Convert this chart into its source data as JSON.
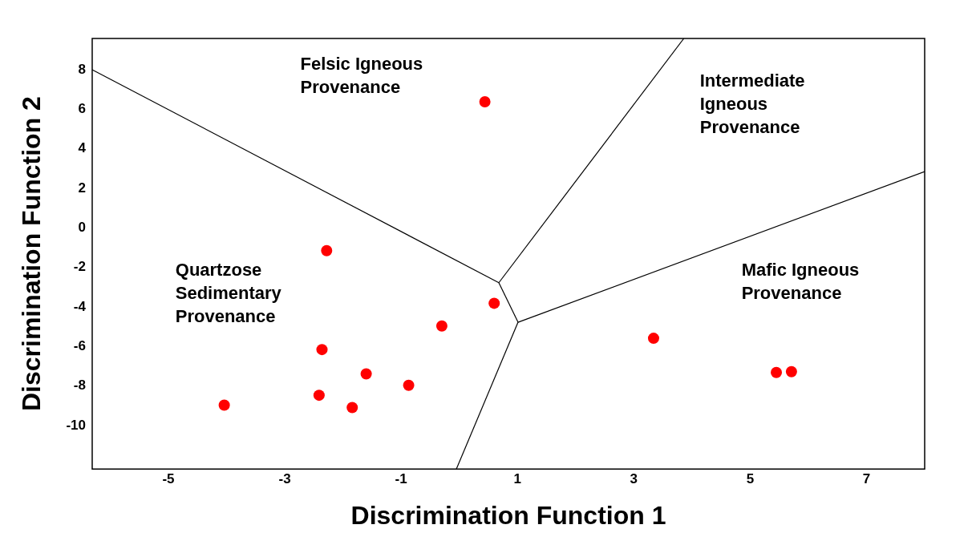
{
  "chart_data": {
    "type": "scatter",
    "xlabel": "Discrimination Function 1",
    "ylabel": "Discrimination Function 2",
    "xlim": [
      -6.31,
      8.0
    ],
    "ylim": [
      -12.19,
      9.58
    ],
    "xticks": [
      -5,
      -3,
      -1,
      1,
      3,
      5,
      7
    ],
    "yticks": [
      -10,
      -8,
      -6,
      -4,
      -2,
      0,
      2,
      4,
      6,
      8
    ],
    "grid": false,
    "legend": false,
    "marker": "circle",
    "series": [
      {
        "type": "scatter",
        "color": "#ff0000",
        "x": [
          0.44,
          -2.28,
          0.6,
          -0.3,
          -2.36,
          -1.6,
          -0.87,
          -2.41,
          -1.84,
          -4.04,
          3.34,
          5.45,
          5.71
        ],
        "values": [
          6.38,
          -1.15,
          -3.81,
          -4.96,
          -6.15,
          -7.38,
          -7.96,
          -8.46,
          -9.08,
          -8.96,
          -5.58,
          -7.31,
          -7.27
        ]
      },
      {
        "type": "line",
        "color": "#000000",
        "marker": "none",
        "x": [
          -6.31,
          0.68
        ],
        "values": [
          8.0,
          -2.77
        ]
      },
      {
        "type": "line",
        "color": "#000000",
        "marker": "none",
        "x": [
          3.86,
          0.68
        ],
        "values": [
          9.58,
          -2.77
        ]
      },
      {
        "type": "line",
        "color": "#000000",
        "marker": "none",
        "x": [
          0.68,
          1.01
        ],
        "values": [
          -2.77,
          -4.77
        ]
      },
      {
        "type": "line",
        "color": "#000000",
        "marker": "none",
        "x": [
          1.01,
          8.0
        ],
        "values": [
          -4.77,
          2.85
        ]
      },
      {
        "type": "line",
        "color": "#000000",
        "marker": "none",
        "x": [
          1.01,
          -0.05
        ],
        "values": [
          -4.77,
          -12.19
        ]
      }
    ],
    "annotations": [
      "Felsic Igneous\nProvenance",
      "Intermediate\nIgneous\nProvenance",
      "Quartzose\nSedimentary\nProvenance",
      "Mafic Igneous\nProvenance"
    ]
  }
}
